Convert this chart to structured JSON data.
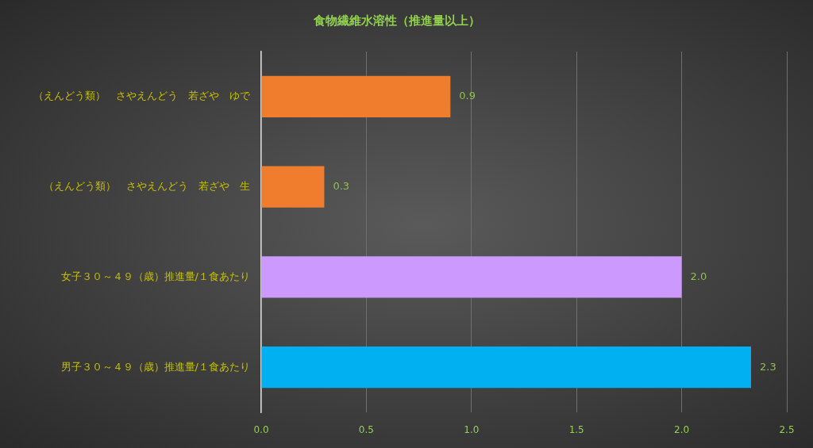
{
  "chart_data": {
    "type": "bar",
    "orientation": "horizontal",
    "title": "食物繊維水溶性（推進量以上）",
    "categories": [
      "（えんどう類）　さやえんどう　若ざや　ゆで",
      "（えんどう類）　さやえんどう　若ざや　生",
      "女子３０～４９（歳）推進量/１食あたり",
      "男子３０～４９（歳）推進量/１食あたり"
    ],
    "values": [
      0.9,
      0.3,
      2,
      2.33
    ],
    "colors": [
      "#f07c2e",
      "#f07c2e",
      "#cc99ff",
      "#00b0f0"
    ],
    "value_labels": [
      "0.9",
      "0.3",
      "2.0",
      "2.3"
    ],
    "xlim": [
      0,
      2.5
    ],
    "xticks": [
      {
        "value": 0,
        "label": "0.0"
      },
      0.5,
      {
        "value": 1,
        "label": "1.0"
      },
      1.5,
      {
        "value": 2,
        "label": "2.0"
      },
      2.5
    ],
    "grid": "x"
  }
}
